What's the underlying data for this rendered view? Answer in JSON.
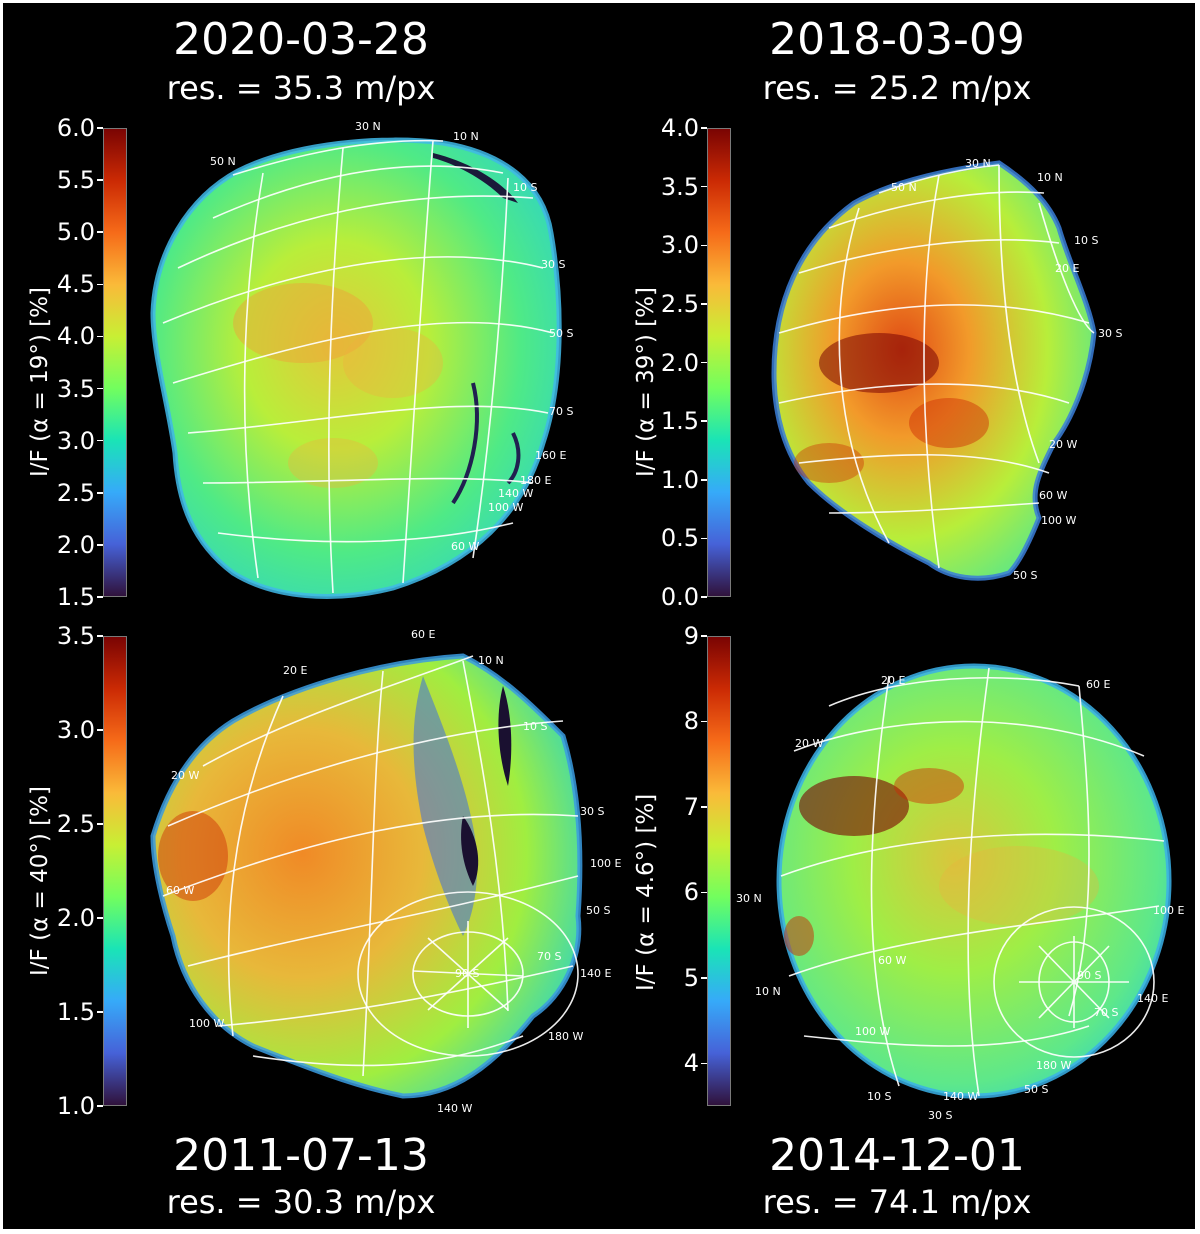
{
  "figure": {
    "colormap": [
      "#30123b",
      "#4662d8",
      "#36aaf9",
      "#1ae4b6",
      "#72fe5e",
      "#c8ef34",
      "#faba39",
      "#f66b19",
      "#cb2a04",
      "#7a0403"
    ],
    "background": "#000000"
  },
  "panels": [
    {
      "date": "2020-03-28",
      "resolution": "res. = 35.3 m/px",
      "colorbar_label": "I/F (α = 19°) [%]",
      "colorbar_ticks": [
        "6.0",
        "5.5",
        "5.0",
        "4.5",
        "4.0",
        "3.5",
        "3.0",
        "2.5",
        "2.0",
        "1.5"
      ],
      "grid_labels": [
        "30 N",
        "10 N",
        "50 N",
        "10 S",
        "30 S",
        "50 S",
        "70 S",
        "160 E",
        "180 E",
        "140 W",
        "100 W",
        "60 W"
      ]
    },
    {
      "date": "2018-03-09",
      "resolution": "res. = 25.2 m/px",
      "colorbar_label": "I/F (α = 39°) [%]",
      "colorbar_ticks": [
        "4.0",
        "3.5",
        "3.0",
        "2.5",
        "2.0",
        "1.5",
        "1.0",
        "0.5",
        "0.0"
      ],
      "grid_labels": [
        "30 N",
        "10 N",
        "50 N",
        "10 S",
        "20 E",
        "30 S",
        "20 W",
        "60 W",
        "100 W",
        "50 S"
      ]
    },
    {
      "date": "2011-07-13",
      "resolution": "res. = 30.3 m/px",
      "colorbar_label": "I/F (α = 40°) [%]",
      "colorbar_ticks": [
        "3.5",
        "3.0",
        "2.5",
        "2.0",
        "1.5",
        "1.0"
      ],
      "grid_labels": [
        "60 E",
        "10 N",
        "20 E",
        "10 S",
        "20 W",
        "30 S",
        "100 E",
        "60 W",
        "50 S",
        "70 S",
        "90 S",
        "140 E",
        "100 W",
        "180 W",
        "140 W"
      ]
    },
    {
      "date": "2014-12-01",
      "resolution": "res. = 74.1 m/px",
      "colorbar_label": "I/F (α = 4.6°) [%]",
      "colorbar_ticks": [
        "9",
        "8",
        "7",
        "6",
        "5",
        "4"
      ],
      "grid_labels": [
        "20 E",
        "60 E",
        "20 W",
        "30 N",
        "100 E",
        "60 W",
        "10 N",
        "90 S",
        "140 E",
        "70 S",
        "100 W",
        "180 W",
        "10 S",
        "140 W",
        "50 S",
        "30 S"
      ]
    }
  ]
}
